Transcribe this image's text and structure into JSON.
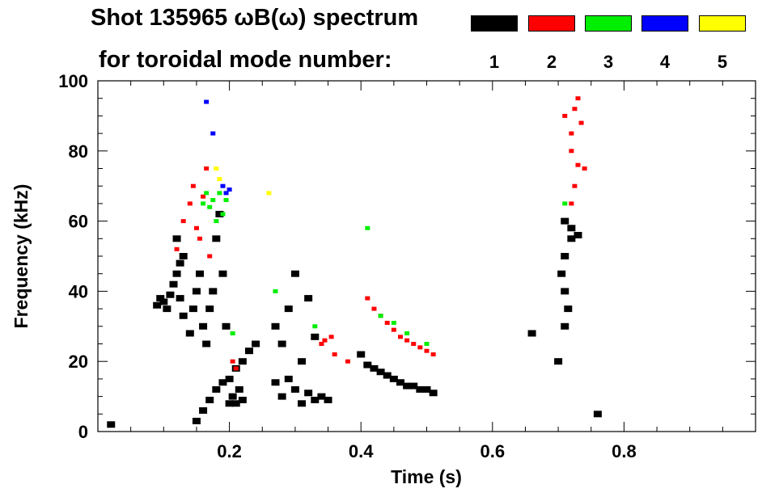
{
  "chart_data": {
    "type": "heatmap",
    "title": "Shot 135965 ωB(ω) spectrum",
    "legend_title": "for toroidal mode number:",
    "xlabel": "Time (s)",
    "ylabel": "Frequency (kHz)",
    "xlim": [
      0.0,
      1.0
    ],
    "ylim": [
      0,
      100
    ],
    "x_ticks": [
      {
        "value": 0.2,
        "label": "0.2"
      },
      {
        "value": 0.4,
        "label": "0.4"
      },
      {
        "value": 0.6,
        "label": "0.6"
      },
      {
        "value": 0.8,
        "label": "0.8"
      }
    ],
    "y_ticks": [
      {
        "value": 0,
        "label": "0"
      },
      {
        "value": 20,
        "label": "20"
      },
      {
        "value": 40,
        "label": "40"
      },
      {
        "value": 60,
        "label": "60"
      },
      {
        "value": 80,
        "label": "80"
      },
      {
        "value": 100,
        "label": "100"
      }
    ],
    "legend": [
      {
        "label": "1",
        "color": "#000000"
      },
      {
        "label": "2",
        "color": "#ff0000"
      },
      {
        "label": "3",
        "color": "#00ee00"
      },
      {
        "label": "4",
        "color": "#0000ff"
      },
      {
        "label": "5",
        "color": "#ffff00"
      }
    ],
    "legend_placement": "top-right",
    "grid": false,
    "series": [
      {
        "mode": 1,
        "points": [
          [
            0.09,
            36
          ],
          [
            0.095,
            38
          ],
          [
            0.1,
            37
          ],
          [
            0.105,
            35
          ],
          [
            0.11,
            39
          ],
          [
            0.115,
            42
          ],
          [
            0.12,
            45
          ],
          [
            0.125,
            48
          ],
          [
            0.13,
            50
          ],
          [
            0.12,
            55
          ],
          [
            0.125,
            38
          ],
          [
            0.13,
            33
          ],
          [
            0.14,
            28
          ],
          [
            0.145,
            35
          ],
          [
            0.15,
            40
          ],
          [
            0.155,
            45
          ],
          [
            0.16,
            30
          ],
          [
            0.165,
            25
          ],
          [
            0.17,
            35
          ],
          [
            0.175,
            40
          ],
          [
            0.18,
            55
          ],
          [
            0.185,
            62
          ],
          [
            0.19,
            45
          ],
          [
            0.195,
            30
          ],
          [
            0.2,
            15
          ],
          [
            0.205,
            10
          ],
          [
            0.21,
            8
          ],
          [
            0.215,
            12
          ],
          [
            0.22,
            9
          ],
          [
            0.2,
            8
          ],
          [
            0.15,
            3
          ],
          [
            0.16,
            6
          ],
          [
            0.17,
            9
          ],
          [
            0.18,
            12
          ],
          [
            0.19,
            14
          ],
          [
            0.21,
            18
          ],
          [
            0.22,
            20
          ],
          [
            0.23,
            23
          ],
          [
            0.24,
            25
          ],
          [
            0.27,
            14
          ],
          [
            0.28,
            10
          ],
          [
            0.29,
            15
          ],
          [
            0.3,
            12
          ],
          [
            0.31,
            8
          ],
          [
            0.32,
            11
          ],
          [
            0.33,
            9
          ],
          [
            0.34,
            10
          ],
          [
            0.35,
            9
          ],
          [
            0.27,
            30
          ],
          [
            0.28,
            25
          ],
          [
            0.29,
            35
          ],
          [
            0.3,
            45
          ],
          [
            0.31,
            20
          ],
          [
            0.32,
            38
          ],
          [
            0.33,
            27
          ],
          [
            0.4,
            22
          ],
          [
            0.41,
            19
          ],
          [
            0.42,
            18
          ],
          [
            0.43,
            17
          ],
          [
            0.44,
            16
          ],
          [
            0.45,
            15
          ],
          [
            0.46,
            14
          ],
          [
            0.47,
            13
          ],
          [
            0.48,
            13
          ],
          [
            0.49,
            12
          ],
          [
            0.5,
            12
          ],
          [
            0.51,
            11
          ],
          [
            0.71,
            60
          ],
          [
            0.71,
            50
          ],
          [
            0.71,
            40
          ],
          [
            0.71,
            30
          ],
          [
            0.72,
            55
          ],
          [
            0.72,
            58
          ],
          [
            0.73,
            56
          ],
          [
            0.705,
            45
          ],
          [
            0.715,
            35
          ],
          [
            0.02,
            2
          ],
          [
            0.66,
            28
          ],
          [
            0.76,
            5
          ],
          [
            0.7,
            20
          ]
        ]
      },
      {
        "mode": 2,
        "points": [
          [
            0.13,
            60
          ],
          [
            0.14,
            65
          ],
          [
            0.15,
            58
          ],
          [
            0.12,
            52
          ],
          [
            0.145,
            70
          ],
          [
            0.16,
            67
          ],
          [
            0.155,
            55
          ],
          [
            0.17,
            50
          ],
          [
            0.165,
            75
          ],
          [
            0.205,
            20
          ],
          [
            0.21,
            18
          ],
          [
            0.34,
            25
          ],
          [
            0.36,
            22
          ],
          [
            0.38,
            20
          ],
          [
            0.355,
            27
          ],
          [
            0.345,
            26
          ],
          [
            0.41,
            38
          ],
          [
            0.42,
            35
          ],
          [
            0.43,
            33
          ],
          [
            0.44,
            31
          ],
          [
            0.45,
            29
          ],
          [
            0.46,
            27
          ],
          [
            0.47,
            26
          ],
          [
            0.48,
            25
          ],
          [
            0.49,
            24
          ],
          [
            0.5,
            23
          ],
          [
            0.51,
            22
          ],
          [
            0.72,
            85
          ],
          [
            0.725,
            92
          ],
          [
            0.73,
            95
          ],
          [
            0.735,
            88
          ],
          [
            0.72,
            80
          ],
          [
            0.73,
            76
          ],
          [
            0.71,
            90
          ],
          [
            0.725,
            70
          ],
          [
            0.72,
            65
          ],
          [
            0.74,
            75
          ]
        ]
      },
      {
        "mode": 3,
        "points": [
          [
            0.16,
            65
          ],
          [
            0.165,
            68
          ],
          [
            0.17,
            64
          ],
          [
            0.175,
            66
          ],
          [
            0.185,
            68
          ],
          [
            0.19,
            62
          ],
          [
            0.195,
            66
          ],
          [
            0.18,
            60
          ],
          [
            0.27,
            40
          ],
          [
            0.33,
            30
          ],
          [
            0.41,
            58
          ],
          [
            0.43,
            33
          ],
          [
            0.45,
            31
          ],
          [
            0.47,
            28
          ],
          [
            0.5,
            25
          ],
          [
            0.205,
            28
          ],
          [
            0.71,
            65
          ]
        ]
      },
      {
        "mode": 4,
        "points": [
          [
            0.165,
            94
          ],
          [
            0.175,
            85
          ],
          [
            0.19,
            70
          ],
          [
            0.195,
            68
          ],
          [
            0.2,
            69
          ]
        ]
      },
      {
        "mode": 5,
        "points": [
          [
            0.18,
            75
          ],
          [
            0.185,
            72
          ],
          [
            0.26,
            68
          ]
        ]
      }
    ]
  }
}
